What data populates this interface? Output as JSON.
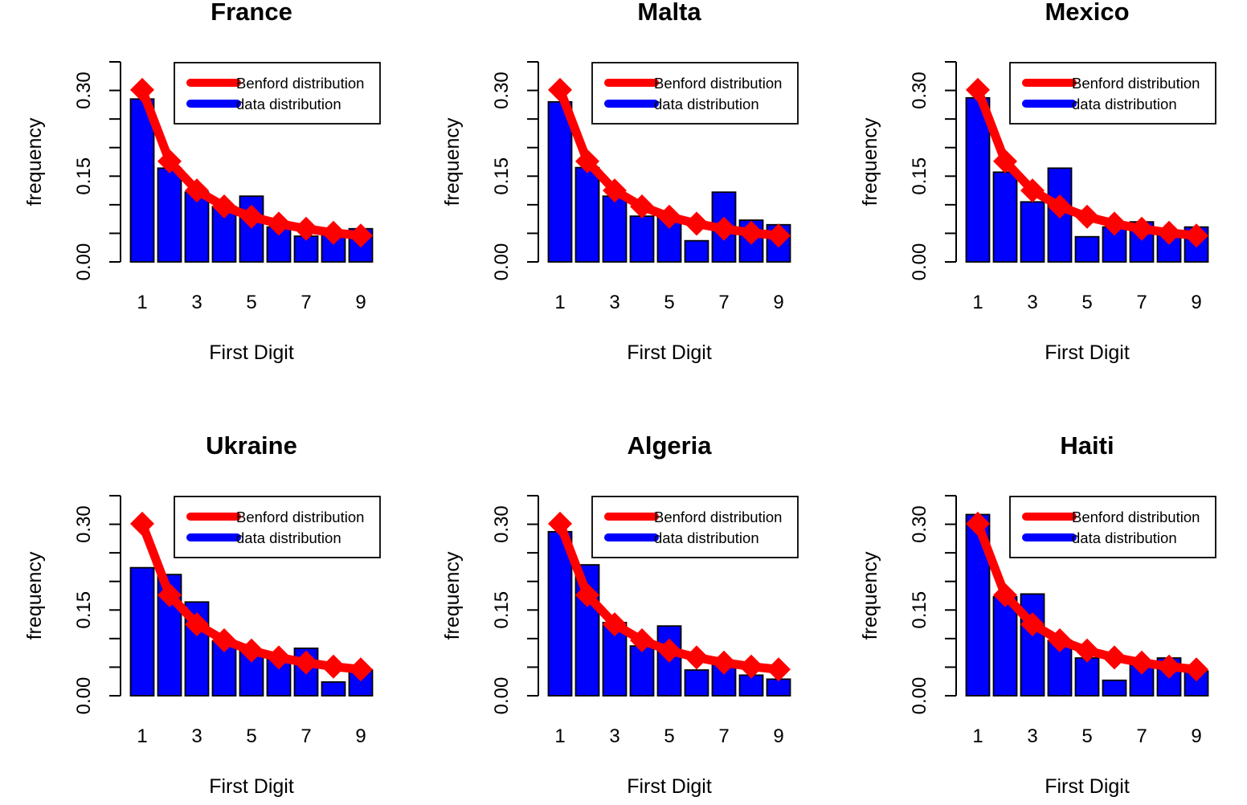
{
  "colors": {
    "benford": "#ff0000",
    "data": "#0000ff",
    "bar_border": "#000000",
    "background": "#ffffff"
  },
  "chart_data": [
    {
      "type": "bar",
      "title": "France",
      "xlabel": "First Digit",
      "ylabel": "frequency",
      "categories": [
        "1",
        "2",
        "3",
        "4",
        "5",
        "6",
        "7",
        "8",
        "9"
      ],
      "x_tick_labels": [
        "1",
        "3",
        "5",
        "7",
        "9"
      ],
      "y_tick_labels": [
        "0.00",
        "0.15",
        "0.30"
      ],
      "ylim": [
        0,
        0.35
      ],
      "legend": [
        "Benford distribution",
        "data distribution"
      ],
      "legend_position": "top-right",
      "grid": false,
      "series": [
        {
          "name": "data distribution",
          "type": "bar",
          "values": [
            0.285,
            0.164,
            0.122,
            0.097,
            0.115,
            0.061,
            0.045,
            0.052,
            0.058
          ]
        },
        {
          "name": "Benford distribution",
          "type": "line",
          "values": [
            0.301,
            0.176,
            0.125,
            0.097,
            0.079,
            0.067,
            0.058,
            0.051,
            0.046
          ]
        }
      ]
    },
    {
      "type": "bar",
      "title": "Malta",
      "xlabel": "First Digit",
      "ylabel": "frequency",
      "categories": [
        "1",
        "2",
        "3",
        "4",
        "5",
        "6",
        "7",
        "8",
        "9"
      ],
      "x_tick_labels": [
        "1",
        "3",
        "5",
        "7",
        "9"
      ],
      "y_tick_labels": [
        "0.00",
        "0.15",
        "0.30"
      ],
      "ylim": [
        0,
        0.35
      ],
      "legend": [
        "Benford distribution",
        "data distribution"
      ],
      "legend_position": "top-right",
      "grid": false,
      "series": [
        {
          "name": "data distribution",
          "type": "bar",
          "values": [
            0.28,
            0.165,
            0.115,
            0.08,
            0.08,
            0.037,
            0.122,
            0.073,
            0.065
          ]
        },
        {
          "name": "Benford distribution",
          "type": "line",
          "values": [
            0.301,
            0.176,
            0.125,
            0.097,
            0.079,
            0.067,
            0.058,
            0.051,
            0.046
          ]
        }
      ]
    },
    {
      "type": "bar",
      "title": "Mexico",
      "xlabel": "First Digit",
      "ylabel": "frequency",
      "categories": [
        "1",
        "2",
        "3",
        "4",
        "5",
        "6",
        "7",
        "8",
        "9"
      ],
      "x_tick_labels": [
        "1",
        "3",
        "5",
        "7",
        "9"
      ],
      "y_tick_labels": [
        "0.00",
        "0.15",
        "0.30"
      ],
      "ylim": [
        0,
        0.35
      ],
      "legend": [
        "Benford distribution",
        "data distribution"
      ],
      "legend_position": "top-right",
      "grid": false,
      "series": [
        {
          "name": "data distribution",
          "type": "bar",
          "values": [
            0.287,
            0.157,
            0.105,
            0.164,
            0.044,
            0.061,
            0.07,
            0.05,
            0.061
          ]
        },
        {
          "name": "Benford distribution",
          "type": "line",
          "values": [
            0.301,
            0.176,
            0.125,
            0.097,
            0.079,
            0.067,
            0.058,
            0.051,
            0.046
          ]
        }
      ]
    },
    {
      "type": "bar",
      "title": "Ukraine",
      "xlabel": "First Digit",
      "ylabel": "frequency",
      "categories": [
        "1",
        "2",
        "3",
        "4",
        "5",
        "6",
        "7",
        "8",
        "9"
      ],
      "x_tick_labels": [
        "1",
        "3",
        "5",
        "7",
        "9"
      ],
      "y_tick_labels": [
        "0.00",
        "0.15",
        "0.30"
      ],
      "ylim": [
        0,
        0.35
      ],
      "legend": [
        "Benford distribution",
        "data distribution"
      ],
      "legend_position": "top-right",
      "grid": false,
      "series": [
        {
          "name": "data distribution",
          "type": "bar",
          "values": [
            0.224,
            0.212,
            0.164,
            0.096,
            0.08,
            0.066,
            0.083,
            0.024,
            0.045
          ]
        },
        {
          "name": "Benford distribution",
          "type": "line",
          "values": [
            0.301,
            0.176,
            0.125,
            0.097,
            0.079,
            0.067,
            0.058,
            0.051,
            0.046
          ]
        }
      ]
    },
    {
      "type": "bar",
      "title": "Algeria",
      "xlabel": "First Digit",
      "ylabel": "frequency",
      "categories": [
        "1",
        "2",
        "3",
        "4",
        "5",
        "6",
        "7",
        "8",
        "9"
      ],
      "x_tick_labels": [
        "1",
        "3",
        "5",
        "7",
        "9"
      ],
      "y_tick_labels": [
        "0.00",
        "0.15",
        "0.30"
      ],
      "ylim": [
        0,
        0.35
      ],
      "legend": [
        "Benford distribution",
        "data distribution"
      ],
      "legend_position": "top-right",
      "grid": false,
      "series": [
        {
          "name": "data distribution",
          "type": "bar",
          "values": [
            0.287,
            0.229,
            0.128,
            0.087,
            0.122,
            0.045,
            0.057,
            0.036,
            0.029
          ]
        },
        {
          "name": "Benford distribution",
          "type": "line",
          "values": [
            0.301,
            0.176,
            0.125,
            0.097,
            0.079,
            0.067,
            0.058,
            0.051,
            0.046
          ]
        }
      ]
    },
    {
      "type": "bar",
      "title": "Haiti",
      "xlabel": "First Digit",
      "ylabel": "frequency",
      "categories": [
        "1",
        "2",
        "3",
        "4",
        "5",
        "6",
        "7",
        "8",
        "9"
      ],
      "x_tick_labels": [
        "1",
        "3",
        "5",
        "7",
        "9"
      ],
      "y_tick_labels": [
        "0.00",
        "0.15",
        "0.30"
      ],
      "ylim": [
        0,
        0.35
      ],
      "legend": [
        "Benford distribution",
        "data distribution"
      ],
      "legend_position": "top-right",
      "grid": false,
      "series": [
        {
          "name": "data distribution",
          "type": "bar",
          "values": [
            0.317,
            0.173,
            0.178,
            0.097,
            0.066,
            0.027,
            0.056,
            0.066,
            0.043
          ]
        },
        {
          "name": "Benford distribution",
          "type": "line",
          "values": [
            0.301,
            0.176,
            0.125,
            0.097,
            0.079,
            0.067,
            0.058,
            0.051,
            0.046
          ]
        }
      ]
    }
  ]
}
